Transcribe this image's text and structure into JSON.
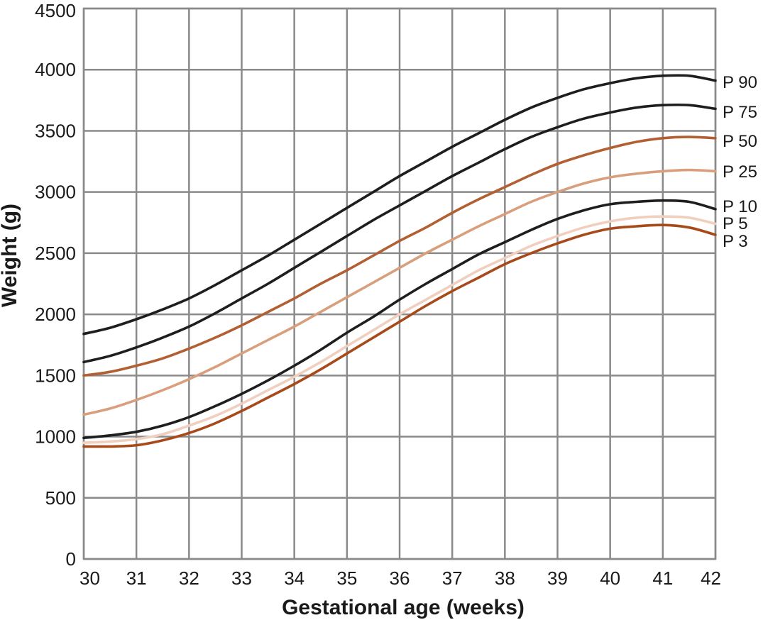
{
  "chart_data": {
    "type": "line",
    "title": "",
    "xlabel": "Gestational age (weeks)",
    "ylabel": "Weight (g)",
    "xlim": [
      30,
      42
    ],
    "ylim": [
      0,
      4500
    ],
    "x_ticks": [
      30,
      31,
      32,
      33,
      34,
      35,
      36,
      37,
      38,
      39,
      40,
      41,
      42
    ],
    "y_ticks": [
      0,
      500,
      1000,
      1500,
      2000,
      2500,
      3000,
      3500,
      4000,
      4500
    ],
    "grid": true,
    "legend": "inline labels at right end of each line",
    "x": [
      30,
      30.5,
      31,
      31.5,
      32,
      32.5,
      33,
      33.5,
      34,
      34.5,
      35,
      35.5,
      36,
      36.5,
      37,
      37.5,
      38,
      38.5,
      39,
      39.5,
      40,
      40.5,
      41,
      41.5,
      42
    ],
    "series": [
      {
        "name": "P 90",
        "color": "#1e1e1e",
        "values": [
          1840,
          1890,
          1960,
          2040,
          2130,
          2240,
          2360,
          2480,
          2610,
          2740,
          2870,
          3000,
          3130,
          3250,
          3370,
          3480,
          3590,
          3690,
          3770,
          3840,
          3890,
          3930,
          3950,
          3950,
          3910
        ]
      },
      {
        "name": "P 75",
        "color": "#1e1e1e",
        "values": [
          1610,
          1660,
          1730,
          1810,
          1900,
          2010,
          2130,
          2250,
          2380,
          2510,
          2640,
          2770,
          2890,
          3010,
          3130,
          3240,
          3350,
          3450,
          3530,
          3600,
          3650,
          3690,
          3710,
          3710,
          3680
        ]
      },
      {
        "name": "P 50",
        "color": "#b25f33",
        "values": [
          1500,
          1530,
          1580,
          1640,
          1720,
          1810,
          1910,
          2020,
          2130,
          2250,
          2360,
          2480,
          2600,
          2710,
          2830,
          2940,
          3040,
          3140,
          3230,
          3300,
          3360,
          3410,
          3440,
          3450,
          3440
        ]
      },
      {
        "name": "P 25",
        "color": "#d99e7c",
        "values": [
          1180,
          1230,
          1300,
          1380,
          1470,
          1570,
          1680,
          1790,
          1900,
          2020,
          2140,
          2260,
          2380,
          2500,
          2610,
          2720,
          2820,
          2920,
          3000,
          3070,
          3120,
          3150,
          3170,
          3180,
          3170
        ]
      },
      {
        "name": "P 10",
        "color": "#1e1e1e",
        "values": [
          990,
          1010,
          1040,
          1090,
          1160,
          1250,
          1350,
          1460,
          1580,
          1710,
          1850,
          1980,
          2120,
          2250,
          2370,
          2490,
          2590,
          2690,
          2780,
          2850,
          2900,
          2920,
          2930,
          2920,
          2860
        ]
      },
      {
        "name": "P 5",
        "color": "#f0cfbf",
        "values": [
          950,
          960,
          980,
          1020,
          1090,
          1170,
          1270,
          1380,
          1490,
          1610,
          1740,
          1870,
          2000,
          2120,
          2240,
          2360,
          2460,
          2560,
          2640,
          2710,
          2760,
          2790,
          2800,
          2790,
          2740
        ]
      },
      {
        "name": "P 3",
        "color": "#a8491a",
        "values": [
          920,
          920,
          930,
          970,
          1030,
          1110,
          1210,
          1320,
          1430,
          1550,
          1680,
          1810,
          1940,
          2070,
          2190,
          2300,
          2410,
          2500,
          2580,
          2650,
          2700,
          2720,
          2730,
          2710,
          2650
        ]
      }
    ]
  }
}
